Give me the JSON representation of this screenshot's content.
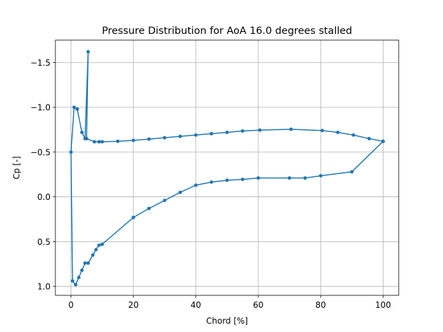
{
  "chart_data": {
    "type": "line",
    "title": "Pressure Distribution for AoA 16.0 degrees stalled",
    "xlabel": "Chord [%]",
    "ylabel": "Cp [-]",
    "xlim": [
      -5,
      105
    ],
    "ylim": [
      1.1,
      -1.75
    ],
    "y_inverted": true,
    "grid": true,
    "x_ticks": [
      0,
      20,
      40,
      60,
      80,
      100
    ],
    "x_tick_labels": [
      "0",
      "20",
      "40",
      "60",
      "80",
      "100"
    ],
    "y_ticks": [
      -1.5,
      -1.0,
      -0.5,
      0.0,
      0.5,
      1.0
    ],
    "y_tick_labels": [
      "−1.5",
      "−1.0",
      "−0.5",
      "0.0",
      "0.5",
      "1.0"
    ],
    "series_color": "#1f77b4",
    "series": [
      {
        "marker": "circle",
        "x": [
          100,
          95.5,
          90.5,
          85.5,
          80.5,
          70.5,
          60.5,
          55,
          50,
          45,
          40,
          35,
          30,
          25,
          20,
          15,
          10,
          9,
          7.5,
          5,
          5.5,
          4.5,
          3.5,
          2,
          1,
          0,
          0.5,
          1.5,
          2.5,
          3.5,
          4.5,
          5.5,
          7,
          8,
          9,
          10,
          20,
          25,
          30,
          35,
          40,
          45,
          50,
          55,
          60,
          70,
          75,
          80,
          90,
          100
        ],
        "y": [
          -0.62,
          -0.65,
          -0.69,
          -0.72,
          -0.74,
          -0.755,
          -0.745,
          -0.735,
          -0.72,
          -0.705,
          -0.69,
          -0.675,
          -0.66,
          -0.645,
          -0.63,
          -0.62,
          -0.615,
          -0.615,
          -0.615,
          -0.65,
          -1.62,
          -0.65,
          -0.72,
          -0.98,
          -1.0,
          -0.5,
          0.94,
          0.98,
          0.9,
          0.82,
          0.74,
          0.74,
          0.65,
          0.59,
          0.54,
          0.53,
          0.23,
          0.13,
          0.04,
          -0.05,
          -0.13,
          -0.165,
          -0.185,
          -0.195,
          -0.21,
          -0.21,
          -0.21,
          -0.235,
          -0.28,
          -0.62
        ]
      }
    ]
  }
}
